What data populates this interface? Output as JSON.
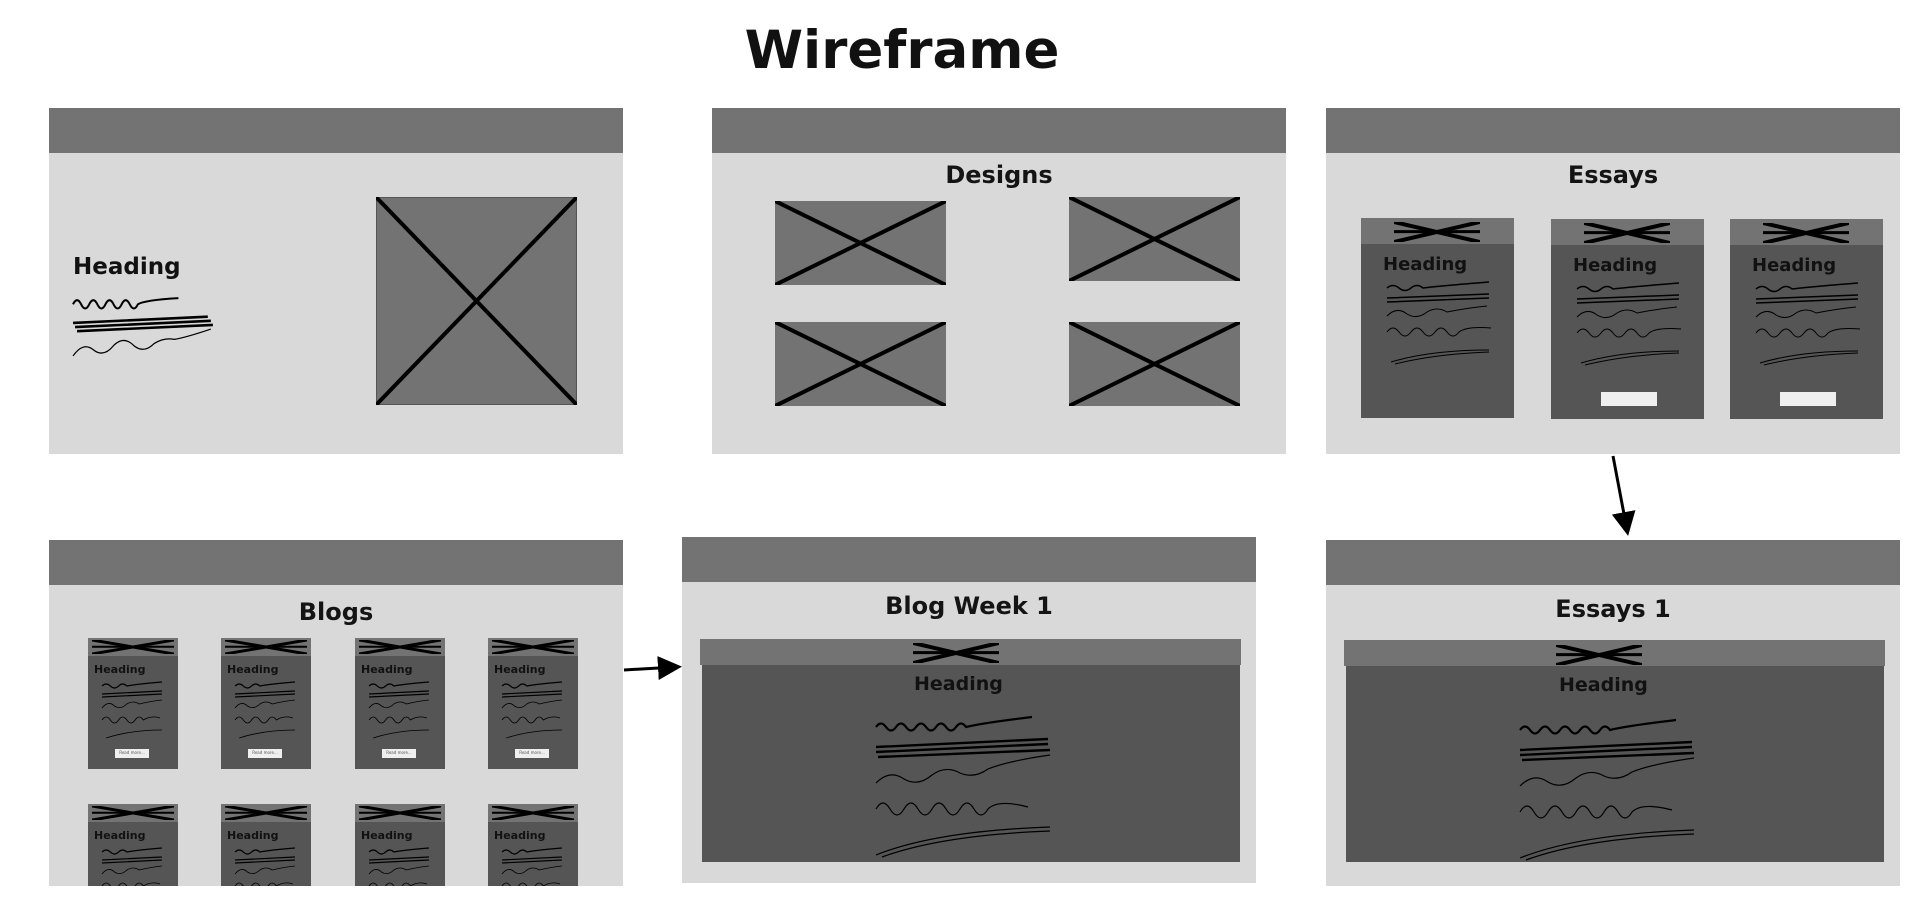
{
  "title": "Wireframe",
  "frames": {
    "home": {
      "heading": "Heading"
    },
    "designs": {
      "title": "Designs"
    },
    "essays": {
      "title": "Essays",
      "card_heading": "Heading"
    },
    "blogs": {
      "title": "Blogs",
      "card_heading": "Heading",
      "button_label": "Read more..."
    },
    "blog_week_1": {
      "title": "Blog Week 1",
      "heading": "Heading"
    },
    "essays_1": {
      "title": "Essays 1",
      "heading": "Heading"
    }
  },
  "colors": {
    "frame_bg": "#d9d9d9",
    "frame_bar": "#737373",
    "card_bg": "#555555",
    "button": "#efefef",
    "line": "#000000"
  },
  "icons": [
    "image-placeholder-icon",
    "text-scribble-icon",
    "arrow-icon"
  ]
}
